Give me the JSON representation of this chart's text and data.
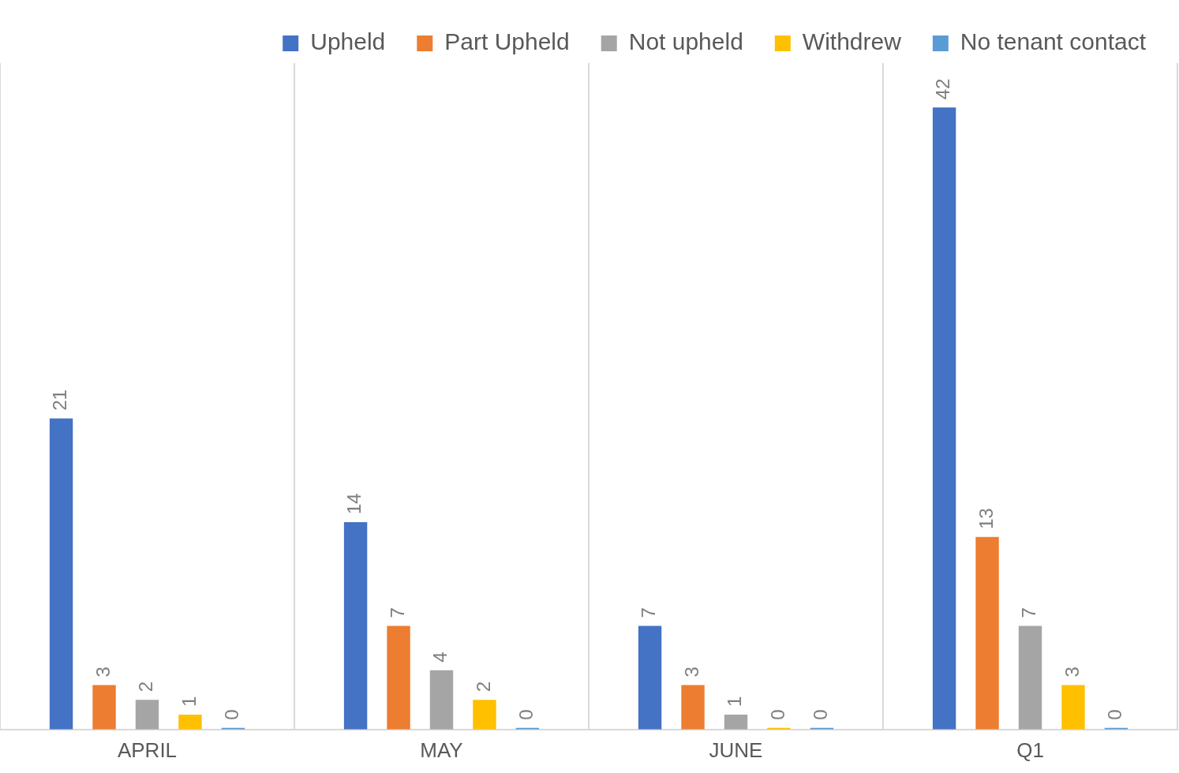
{
  "chart_data": {
    "type": "bar",
    "categories": [
      "APRIL",
      "MAY",
      "JUNE",
      "Q1"
    ],
    "series": [
      {
        "name": "Upheld",
        "color": "#4472c4",
        "values": [
          21,
          14,
          7,
          42
        ]
      },
      {
        "name": "Part Upheld",
        "color": "#ed7d31",
        "values": [
          3,
          7,
          3,
          13
        ]
      },
      {
        "name": "Not upheld",
        "color": "#a5a5a5",
        "values": [
          2,
          4,
          1,
          7
        ]
      },
      {
        "name": "Withdrew",
        "color": "#ffc000",
        "values": [
          1,
          2,
          0,
          3
        ]
      },
      {
        "name": "No tenant contact",
        "color": "#5b9bd5",
        "values": [
          0,
          0,
          0,
          0
        ]
      }
    ],
    "data_labels": true,
    "grid": "x",
    "legend": "top right"
  }
}
